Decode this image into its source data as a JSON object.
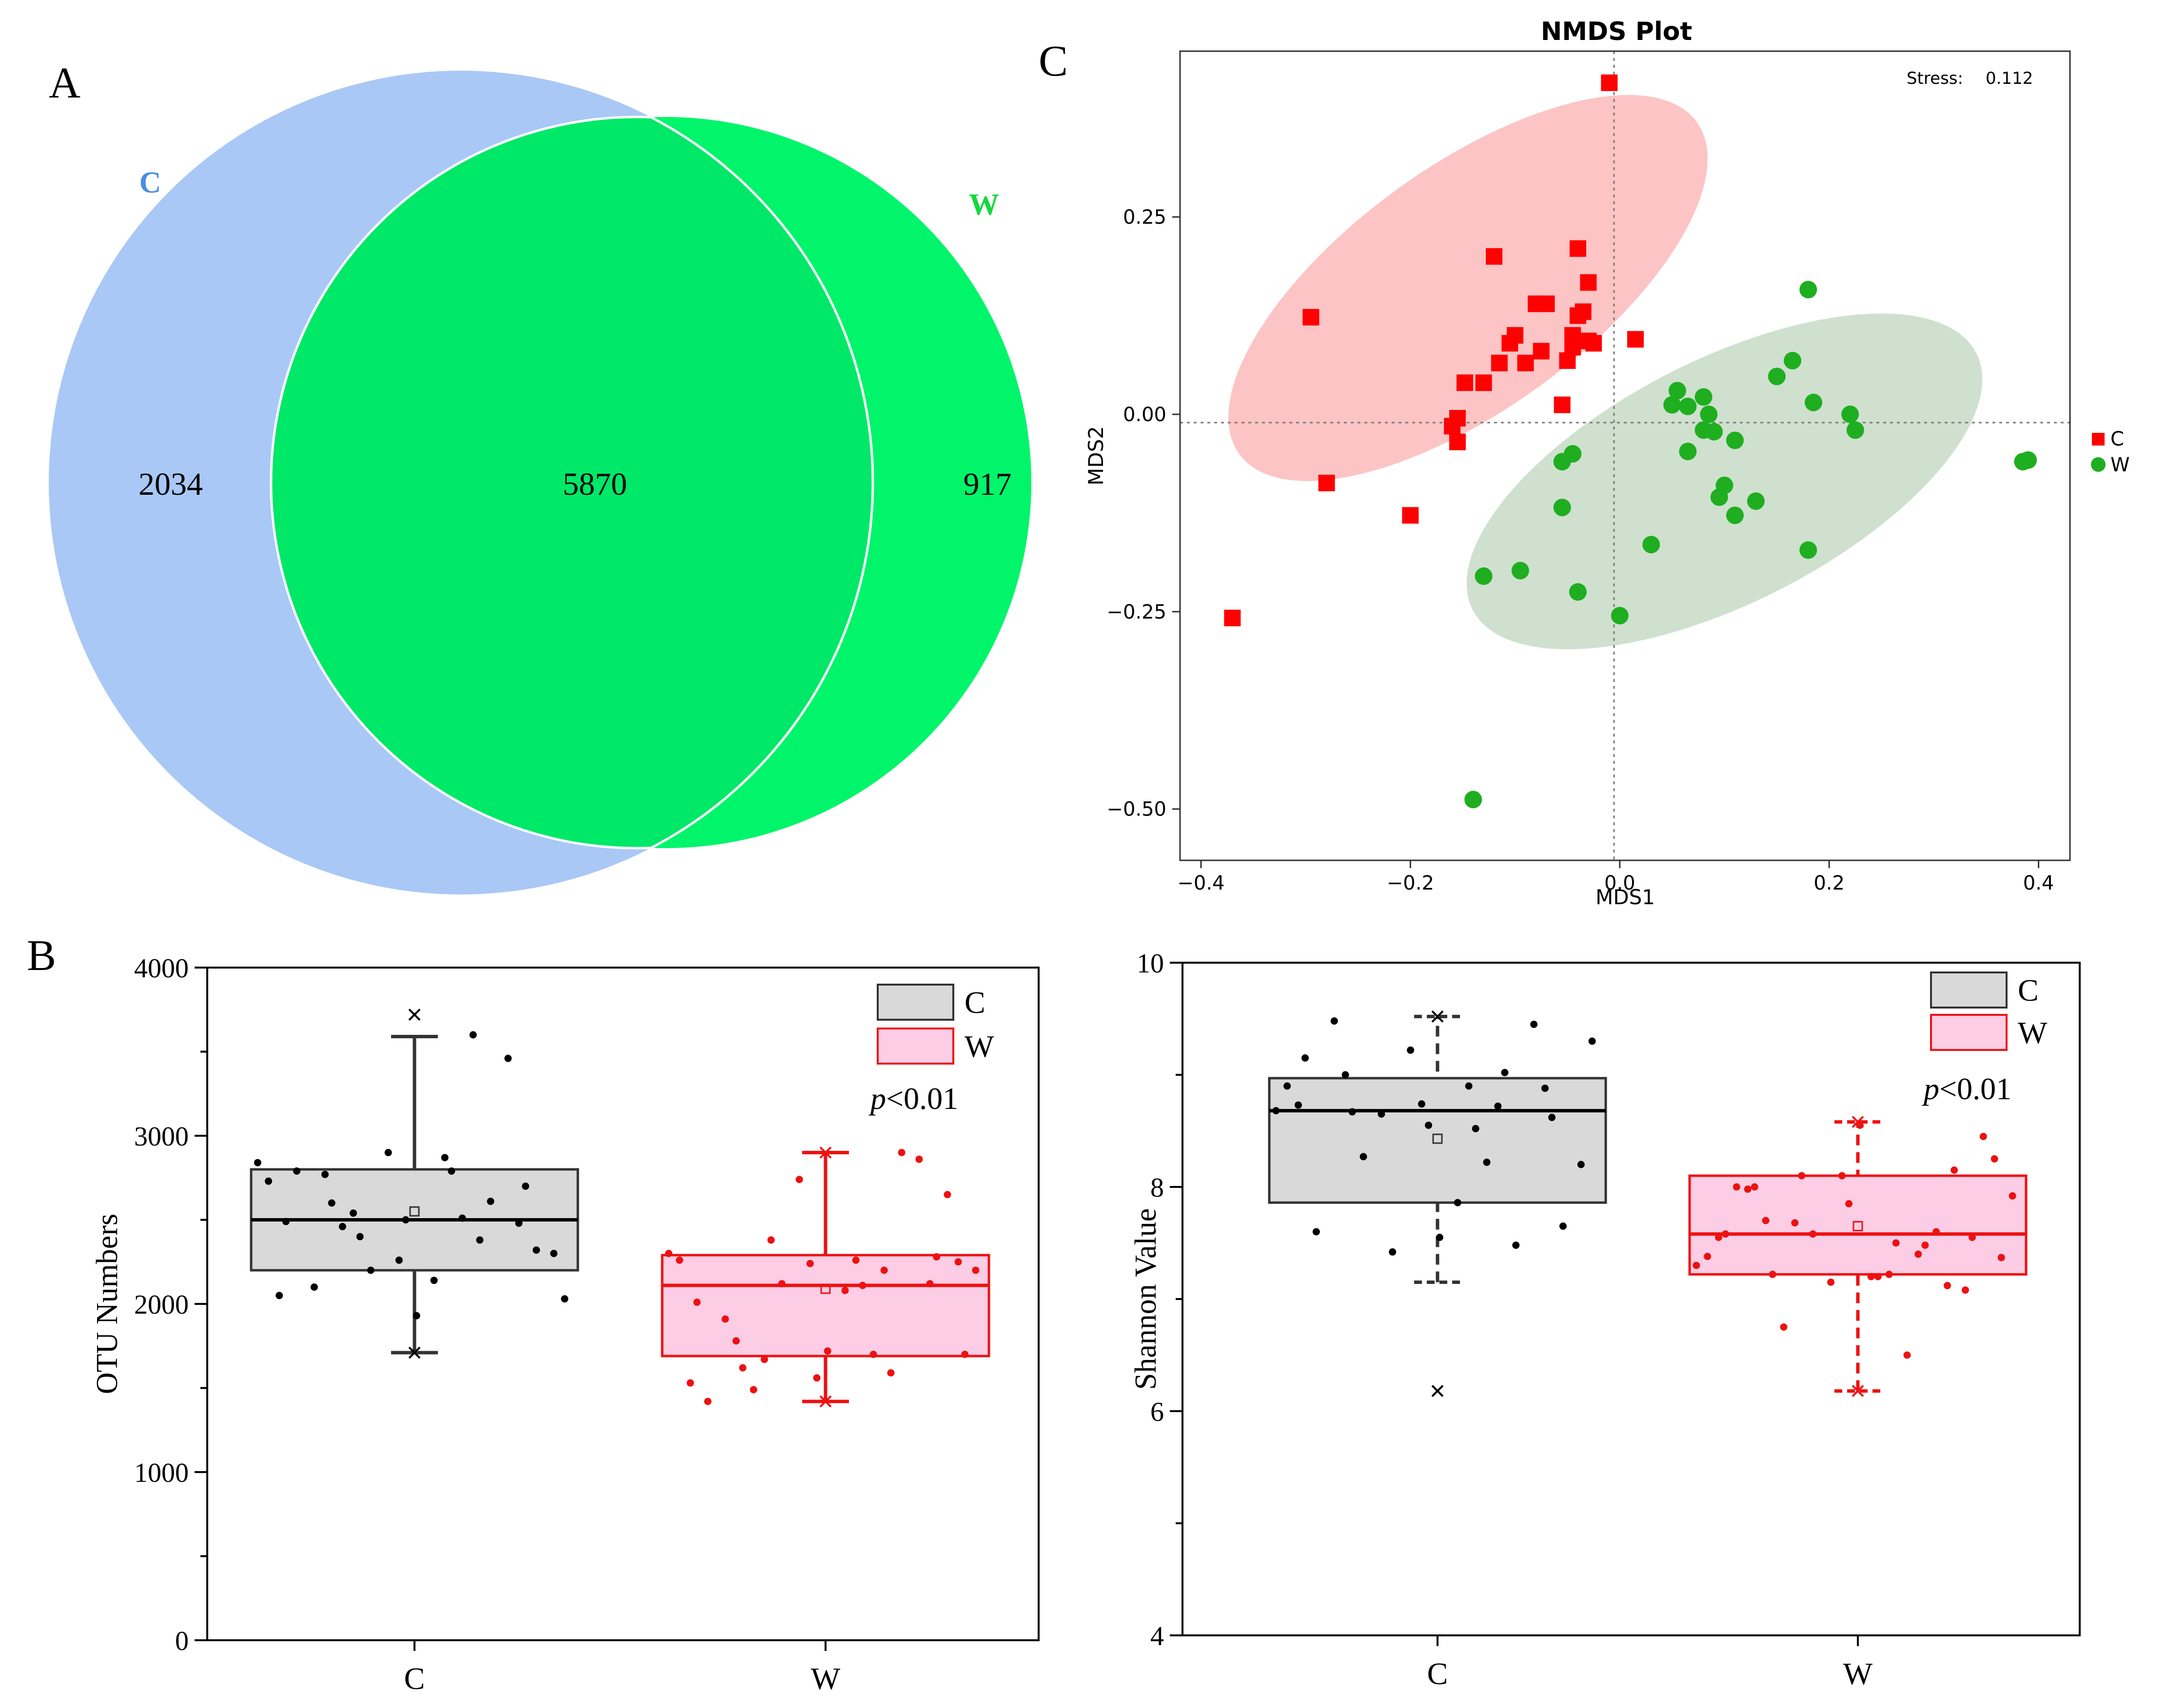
{
  "panel_labels": {
    "a": "A",
    "b": "B",
    "c": "C"
  },
  "colors": {
    "venn_c": "#a9c8f5",
    "venn_w": "#00f56a",
    "venn_overlap": "#00e868",
    "venn_c_label": "#4a8fe0",
    "venn_w_label": "#14d83c",
    "nmds_c": "#ff0000",
    "nmds_w": "#1fae1f",
    "ellipse_c": "#fcc4c4",
    "ellipse_w": "#cfe0cf",
    "box_c_fill": "#d9d9d9",
    "box_w_fill": "#fccde5",
    "box_w_line": "#ee1111"
  },
  "chart_data": [
    {
      "type": "venn",
      "sets": [
        {
          "name": "C",
          "label": "C",
          "only_count": "2034"
        },
        {
          "name": "W",
          "label": "W",
          "only_count": "917"
        }
      ],
      "intersection": "5870"
    },
    {
      "type": "scatter",
      "title": "NMDS Plot",
      "xlabel": "MDS1",
      "ylabel": "MDS2",
      "stress_label": "Stress:",
      "stress_value": "0.112",
      "xlim": [
        -0.42,
        0.43
      ],
      "ylim": [
        -0.565,
        0.46
      ],
      "xticks": [
        -0.4,
        -0.2,
        0.0,
        0.2,
        0.4
      ],
      "xtick_labels": [
        "−0.4",
        "−0.2",
        "0.0",
        "0.2",
        "0.4"
      ],
      "yticks": [
        0.25,
        0.0,
        -0.25,
        -0.5
      ],
      "ytick_labels": [
        "0.25",
        "0.00",
        "−0.25",
        "−0.50"
      ],
      "legend": [
        {
          "name": "C",
          "marker": "square"
        },
        {
          "name": "W",
          "marker": "circle"
        }
      ],
      "ellipses": [
        {
          "series": "C",
          "center": [
            -0.145,
            0.16
          ],
          "semi_axes": [
            0.27,
            0.095
          ],
          "angle_deg": 36
        },
        {
          "series": "W",
          "center": [
            0.1,
            -0.085
          ],
          "semi_axes": [
            0.27,
            0.095
          ],
          "angle_deg": 27
        }
      ],
      "series": [
        {
          "name": "C",
          "marker": "square",
          "points": [
            [
              -0.01,
              0.42
            ],
            [
              -0.12,
              0.2
            ],
            [
              -0.04,
              0.21
            ],
            [
              -0.295,
              0.123
            ],
            [
              -0.03,
              0.167
            ],
            [
              -0.08,
              0.14
            ],
            [
              -0.07,
              0.14
            ],
            [
              -0.035,
              0.13
            ],
            [
              -0.04,
              0.125
            ],
            [
              -0.1,
              0.1
            ],
            [
              -0.105,
              0.09
            ],
            [
              -0.045,
              0.1
            ],
            [
              -0.03,
              0.093
            ],
            [
              -0.025,
              0.09
            ],
            [
              -0.045,
              0.085
            ],
            [
              -0.075,
              0.08
            ],
            [
              -0.09,
              0.065
            ],
            [
              -0.05,
              0.068
            ],
            [
              -0.115,
              0.065
            ],
            [
              0.015,
              0.095
            ],
            [
              -0.148,
              0.04
            ],
            [
              -0.13,
              0.04
            ],
            [
              -0.055,
              0.012
            ],
            [
              -0.155,
              -0.005
            ],
            [
              -0.16,
              -0.015
            ],
            [
              -0.155,
              -0.035
            ],
            [
              -0.28,
              -0.087
            ],
            [
              -0.2,
              -0.128
            ],
            [
              -0.37,
              -0.258
            ]
          ]
        },
        {
          "name": "W",
          "marker": "circle",
          "points": [
            [
              0.18,
              0.158
            ],
            [
              0.165,
              0.068
            ],
            [
              0.15,
              0.048
            ],
            [
              0.055,
              0.03
            ],
            [
              0.08,
              0.022
            ],
            [
              0.05,
              0.012
            ],
            [
              0.065,
              0.01
            ],
            [
              0.185,
              0.015
            ],
            [
              0.085,
              0.0
            ],
            [
              0.22,
              0.0
            ],
            [
              0.08,
              -0.02
            ],
            [
              0.09,
              -0.022
            ],
            [
              0.225,
              -0.02
            ],
            [
              0.11,
              -0.033
            ],
            [
              0.065,
              -0.047
            ],
            [
              -0.045,
              -0.05
            ],
            [
              -0.055,
              -0.06
            ],
            [
              0.1,
              -0.09
            ],
            [
              0.095,
              -0.105
            ],
            [
              0.13,
              -0.11
            ],
            [
              0.11,
              -0.128
            ],
            [
              -0.055,
              -0.118
            ],
            [
              0.03,
              -0.165
            ],
            [
              0.18,
              -0.172
            ],
            [
              -0.095,
              -0.198
            ],
            [
              -0.13,
              -0.205
            ],
            [
              -0.04,
              -0.225
            ],
            [
              0.0,
              -0.255
            ],
            [
              -0.14,
              -0.488
            ],
            [
              0.385,
              -0.06
            ],
            [
              0.39,
              -0.058
            ]
          ]
        }
      ]
    },
    {
      "type": "box",
      "ylabel": "OTU Numbers",
      "ylim": [
        0,
        4000
      ],
      "yticks": [
        0,
        1000,
        2000,
        3000,
        4000
      ],
      "categories": [
        "C",
        "W"
      ],
      "legend": [
        {
          "name": "C"
        },
        {
          "name": "W"
        }
      ],
      "annotation": {
        "prefix": "p",
        "text": "<0.01"
      },
      "boxes": [
        {
          "name": "C",
          "q1": 2200,
          "median": 2500,
          "q3": 2800,
          "whisker_low": 1710,
          "whisker_high": 3590,
          "mean": 2550,
          "outliers": [
            3720
          ],
          "extremes": [
            1710
          ],
          "points": [
            2840,
            2790,
            2600,
            2700,
            2500,
            2490,
            2380,
            2400,
            2300,
            2140,
            2100,
            3460,
            2900,
            2730,
            2510,
            2460,
            2320,
            1930,
            2790,
            2610,
            2200,
            2030,
            2870,
            2770,
            2480,
            2260,
            2050,
            3600,
            2540
          ]
        },
        {
          "name": "W",
          "q1": 1690,
          "median": 2110,
          "q3": 2290,
          "whisker_low": 1420,
          "whisker_high": 2900,
          "mean": 2090,
          "outliers": [],
          "extremes": [
            2900,
            1420
          ],
          "points": [
            2300,
            2110,
            1620,
            2280,
            1560,
            2010,
            1590,
            2380,
            1700,
            2080,
            1910,
            2860,
            2740,
            2260,
            1700,
            1490,
            2650,
            1720,
            1420,
            2900,
            2120,
            2200,
            2260,
            1780,
            2120,
            2240,
            1530,
            2200,
            1670,
            2250
          ]
        }
      ]
    },
    {
      "type": "box",
      "ylabel": "Shannon Value",
      "ylim": [
        4,
        10
      ],
      "yticks": [
        4,
        6,
        8,
        10
      ],
      "categories": [
        "C",
        "W"
      ],
      "legend": [
        {
          "name": "C"
        },
        {
          "name": "W"
        }
      ],
      "annotation": {
        "prefix": "p",
        "text": "<0.01"
      },
      "boxes": [
        {
          "name": "C",
          "q1": 7.86,
          "median": 8.68,
          "q3": 8.97,
          "whisker_low": 7.15,
          "whisker_high": 9.52,
          "mean": 8.43,
          "outliers": [
            6.18
          ],
          "extremes": [
            9.52
          ],
          "points": [
            8.68,
            8.52,
            8.67,
            8.62,
            8.55,
            9.15,
            9.02,
            8.65,
            8.2,
            7.86,
            9.48,
            9.45,
            9.22,
            8.9,
            8.22,
            8.27,
            7.65,
            7.55,
            7.6,
            7.48,
            7.42,
            9.3,
            8.9,
            9.0,
            8.88,
            8.74,
            8.73,
            8.72
          ]
        },
        {
          "name": "W",
          "q1": 7.22,
          "median": 7.58,
          "q3": 8.1,
          "whisker_low": 6.18,
          "whisker_high": 8.58,
          "mean": 7.65,
          "outliers": [],
          "extremes": [
            8.58,
            6.18
          ],
          "points": [
            7.3,
            7.5,
            7.22,
            7.55,
            7.85,
            7.58,
            7.48,
            8.1,
            7.37,
            7.2,
            8.0,
            8.15,
            7.15,
            7.38,
            6.5,
            6.75,
            8.45,
            8.55,
            8.0,
            7.6,
            7.58,
            7.92,
            7.22,
            7.7,
            7.08,
            8.1,
            7.55,
            7.4,
            7.68,
            8.25,
            7.2,
            7.98,
            7.12
          ]
        }
      ]
    }
  ]
}
